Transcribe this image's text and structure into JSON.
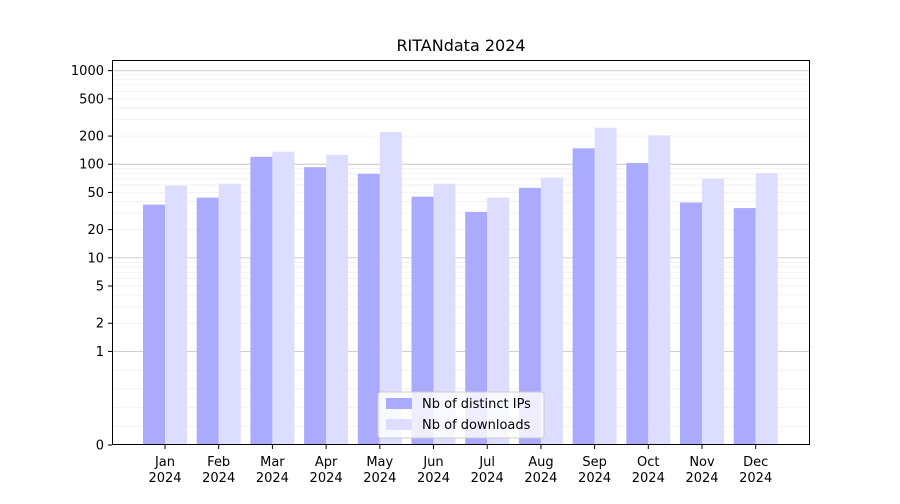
{
  "chart_data": {
    "type": "bar",
    "title": "RITANdata 2024",
    "xlabel": "",
    "ylabel": "",
    "yscale": "symlog",
    "ylim": [
      0,
      1300
    ],
    "yticks": [
      0,
      1,
      2,
      5,
      10,
      20,
      50,
      100,
      200,
      500,
      1000
    ],
    "ytick_labels": [
      "0",
      "1",
      "2",
      "5",
      "10",
      "20",
      "50",
      "100",
      "200",
      "500",
      "1000"
    ],
    "categories": [
      "Jan\n2024",
      "Feb\n2024",
      "Mar\n2024",
      "Apr\n2024",
      "May\n2024",
      "Jun\n2024",
      "Jul\n2024",
      "Aug\n2024",
      "Sep\n2024",
      "Oct\n2024",
      "Nov\n2024",
      "Dec\n2024"
    ],
    "series": [
      {
        "name": "Nb of distinct IPs",
        "color": "#aaaaff",
        "values": [
          37,
          44,
          120,
          93,
          79,
          45,
          31,
          56,
          148,
          103,
          39,
          34
        ]
      },
      {
        "name": "Nb of downloads",
        "color": "#ddddff",
        "values": [
          59,
          62,
          136,
          126,
          222,
          62,
          44,
          72,
          246,
          203,
          70,
          80
        ]
      }
    ],
    "grid": true,
    "legend_position": "lower center"
  }
}
